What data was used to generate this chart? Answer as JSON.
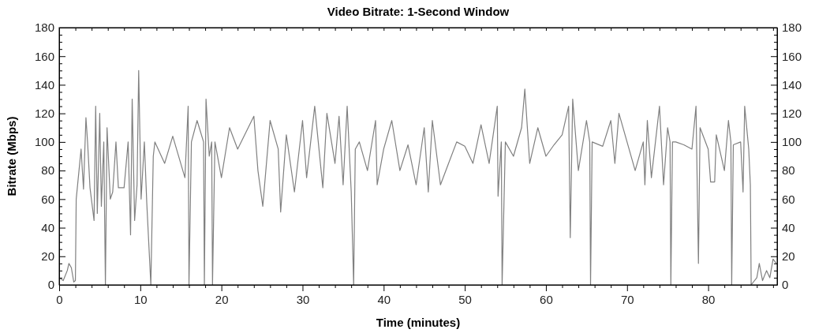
{
  "chart_data": {
    "type": "line",
    "title": "Video Bitrate: 1-Second Window",
    "xlabel": "Time (minutes)",
    "ylabel": "Bitrate (Mbps)",
    "xlim": [
      0,
      88.5
    ],
    "xticks": [
      0,
      {
        "value": 2,
        "label": null
      },
      {
        "value": 4,
        "label": null
      },
      {
        "value": 6,
        "label": null
      },
      {
        "value": 8,
        "label": null
      },
      10,
      {
        "value": 12,
        "label": null
      },
      {
        "value": 14,
        "label": null
      },
      {
        "value": 16,
        "label": null
      },
      {
        "value": 18,
        "label": null
      },
      20,
      {
        "value": 22,
        "label": null
      },
      {
        "value": 24,
        "label": null
      },
      {
        "value": 26,
        "label": null
      },
      {
        "value": 28,
        "label": null
      },
      30,
      {
        "value": 32,
        "label": null
      },
      {
        "value": 34,
        "label": null
      },
      {
        "value": 36,
        "label": null
      },
      {
        "value": 38,
        "label": null
      },
      40,
      {
        "value": 42,
        "label": null
      },
      {
        "value": 44,
        "label": null
      },
      {
        "value": 46,
        "label": null
      },
      {
        "value": 48,
        "label": null
      },
      50,
      {
        "value": 52,
        "label": null
      },
      {
        "value": 54,
        "label": null
      },
      {
        "value": 56,
        "label": null
      },
      {
        "value": 58,
        "label": null
      },
      60,
      {
        "value": 62,
        "label": null
      },
      {
        "value": 64,
        "label": null
      },
      {
        "value": 66,
        "label": null
      },
      {
        "value": 68,
        "label": null
      },
      70,
      {
        "value": 72,
        "label": null
      },
      {
        "value": 74,
        "label": null
      },
      {
        "value": 76,
        "label": null
      },
      {
        "value": 78,
        "label": null
      },
      80,
      {
        "value": 82,
        "label": null
      },
      {
        "value": 84,
        "label": null
      },
      {
        "value": 86,
        "label": null
      },
      {
        "value": 88,
        "label": null
      }
    ],
    "ylim": [
      0,
      180
    ],
    "yticks": [
      0,
      {
        "value": 5,
        "label": null
      },
      {
        "value": 10,
        "label": null
      },
      {
        "value": 15,
        "label": null
      },
      20,
      {
        "value": 25,
        "label": null
      },
      {
        "value": 30,
        "label": null
      },
      {
        "value": 35,
        "label": null
      },
      40,
      {
        "value": 45,
        "label": null
      },
      {
        "value": 50,
        "label": null
      },
      {
        "value": 55,
        "label": null
      },
      60,
      {
        "value": 65,
        "label": null
      },
      {
        "value": 70,
        "label": null
      },
      {
        "value": 75,
        "label": null
      },
      80,
      {
        "value": 85,
        "label": null
      },
      {
        "value": 90,
        "label": null
      },
      {
        "value": 95,
        "label": null
      },
      100,
      {
        "value": 105,
        "label": null
      },
      {
        "value": 110,
        "label": null
      },
      {
        "value": 115,
        "label": null
      },
      120,
      {
        "value": 125,
        "label": null
      },
      {
        "value": 130,
        "label": null
      },
      {
        "value": 135,
        "label": null
      },
      140,
      {
        "value": 145,
        "label": null
      },
      {
        "value": 150,
        "label": null
      },
      {
        "value": 155,
        "label": null
      },
      160,
      {
        "value": 165,
        "label": null
      },
      {
        "value": 170,
        "label": null
      },
      {
        "value": 175,
        "label": null
      },
      180
    ],
    "y2lim": [
      0,
      180
    ],
    "y2ticks": [
      0,
      {
        "value": 5,
        "label": null
      },
      {
        "value": 10,
        "label": null
      },
      {
        "value": 15,
        "label": null
      },
      20,
      {
        "value": 25,
        "label": null
      },
      {
        "value": 30,
        "label": null
      },
      {
        "value": 35,
        "label": null
      },
      40,
      {
        "value": 45,
        "label": null
      },
      {
        "value": 50,
        "label": null
      },
      {
        "value": 55,
        "label": null
      },
      60,
      {
        "value": 65,
        "label": null
      },
      {
        "value": 70,
        "label": null
      },
      {
        "value": 75,
        "label": null
      },
      80,
      {
        "value": 85,
        "label": null
      },
      {
        "value": 90,
        "label": null
      },
      {
        "value": 95,
        "label": null
      },
      100,
      {
        "value": 105,
        "label": null
      },
      {
        "value": 110,
        "label": null
      },
      {
        "value": 115,
        "label": null
      },
      120,
      {
        "value": 125,
        "label": null
      },
      {
        "value": 130,
        "label": null
      },
      {
        "value": 135,
        "label": null
      },
      140,
      {
        "value": 145,
        "label": null
      },
      {
        "value": 150,
        "label": null
      },
      {
        "value": 155,
        "label": null
      },
      160,
      {
        "value": 165,
        "label": null
      },
      {
        "value": 170,
        "label": null
      },
      {
        "value": 175,
        "label": null
      },
      180
    ],
    "grid": false,
    "marker": "none",
    "line_style": "solid",
    "series": [
      {
        "color": "#808080",
        "x": [
          0,
          0.5,
          1,
          1.2,
          1.5,
          1.8,
          2,
          2.1,
          2.7,
          3,
          3.3,
          3.5,
          3.8,
          4.3,
          4.5,
          4.7,
          5,
          5.2,
          5.5,
          5.7,
          5.9,
          6.3,
          6.6,
          7,
          7.3,
          8,
          8.5,
          8.8,
          9,
          9.3,
          9.6,
          9.8,
          10.1,
          10.5,
          10.8,
          11.3,
          11.6,
          11.8,
          13,
          14,
          15.5,
          15.9,
          16,
          16.3,
          17,
          17.8,
          17.9,
          18.1,
          18.5,
          18.8,
          18.9,
          19.2,
          20,
          21,
          22,
          24,
          24.5,
          25.1,
          26,
          27,
          27.3,
          28,
          29,
          30,
          30.5,
          31.5,
          32.5,
          33,
          34,
          34.5,
          35,
          35.5,
          36,
          36.3,
          36.5,
          37,
          38,
          39,
          39.2,
          40,
          41,
          42,
          43,
          44,
          45,
          45.5,
          46,
          47,
          48,
          49,
          50,
          51,
          52,
          53,
          54,
          54.1,
          54.5,
          54.6,
          55,
          56,
          57,
          57.4,
          58,
          59,
          60,
          61,
          62,
          62.8,
          63,
          63.3,
          64,
          65,
          65.4,
          65.5,
          65.7,
          67,
          68,
          68.5,
          69,
          70,
          71,
          72,
          72.2,
          72.5,
          73,
          74,
          74.5,
          75,
          75.3,
          75.4,
          75.6,
          76,
          77,
          78,
          78.5,
          78.8,
          79,
          80,
          80.3,
          80.8,
          81,
          82,
          82.5,
          82.8,
          82.9,
          83.1,
          84,
          84.3,
          84.5,
          85,
          85.2,
          85.3,
          86,
          86.3,
          86.7,
          87.2,
          87.6,
          88,
          88.4
        ],
        "values": [
          5,
          3,
          10,
          15,
          12,
          2,
          3,
          60,
          95,
          67,
          117,
          100,
          68,
          45,
          125,
          50,
          120,
          55,
          100,
          0,
          110,
          60,
          65,
          100,
          68,
          68,
          100,
          35,
          130,
          45,
          70,
          150,
          60,
          100,
          57,
          0,
          90,
          100,
          85,
          104,
          75,
          125,
          0,
          100,
          115,
          100,
          0,
          130,
          90,
          100,
          0,
          100,
          75,
          110,
          95,
          118,
          80,
          55,
          115,
          95,
          51,
          105,
          65,
          115,
          75,
          125,
          68,
          120,
          85,
          118,
          70,
          125,
          65,
          0,
          95,
          100,
          80,
          115,
          70,
          95,
          115,
          80,
          98,
          70,
          110,
          65,
          115,
          70,
          85,
          100,
          97,
          85,
          112,
          85,
          125,
          62,
          100,
          0,
          100,
          90,
          110,
          137,
          85,
          110,
          90,
          98,
          105,
          125,
          33,
          130,
          80,
          115,
          100,
          0,
          100,
          97,
          115,
          85,
          120,
          100,
          80,
          100,
          70,
          115,
          75,
          125,
          70,
          110,
          100,
          0,
          100,
          100,
          98,
          95,
          125,
          15,
          110,
          95,
          72,
          72,
          105,
          80,
          115,
          100,
          0,
          98,
          100,
          65,
          125,
          95,
          70,
          0,
          5,
          15,
          3,
          10,
          5,
          18,
          15
        ]
      }
    ]
  }
}
